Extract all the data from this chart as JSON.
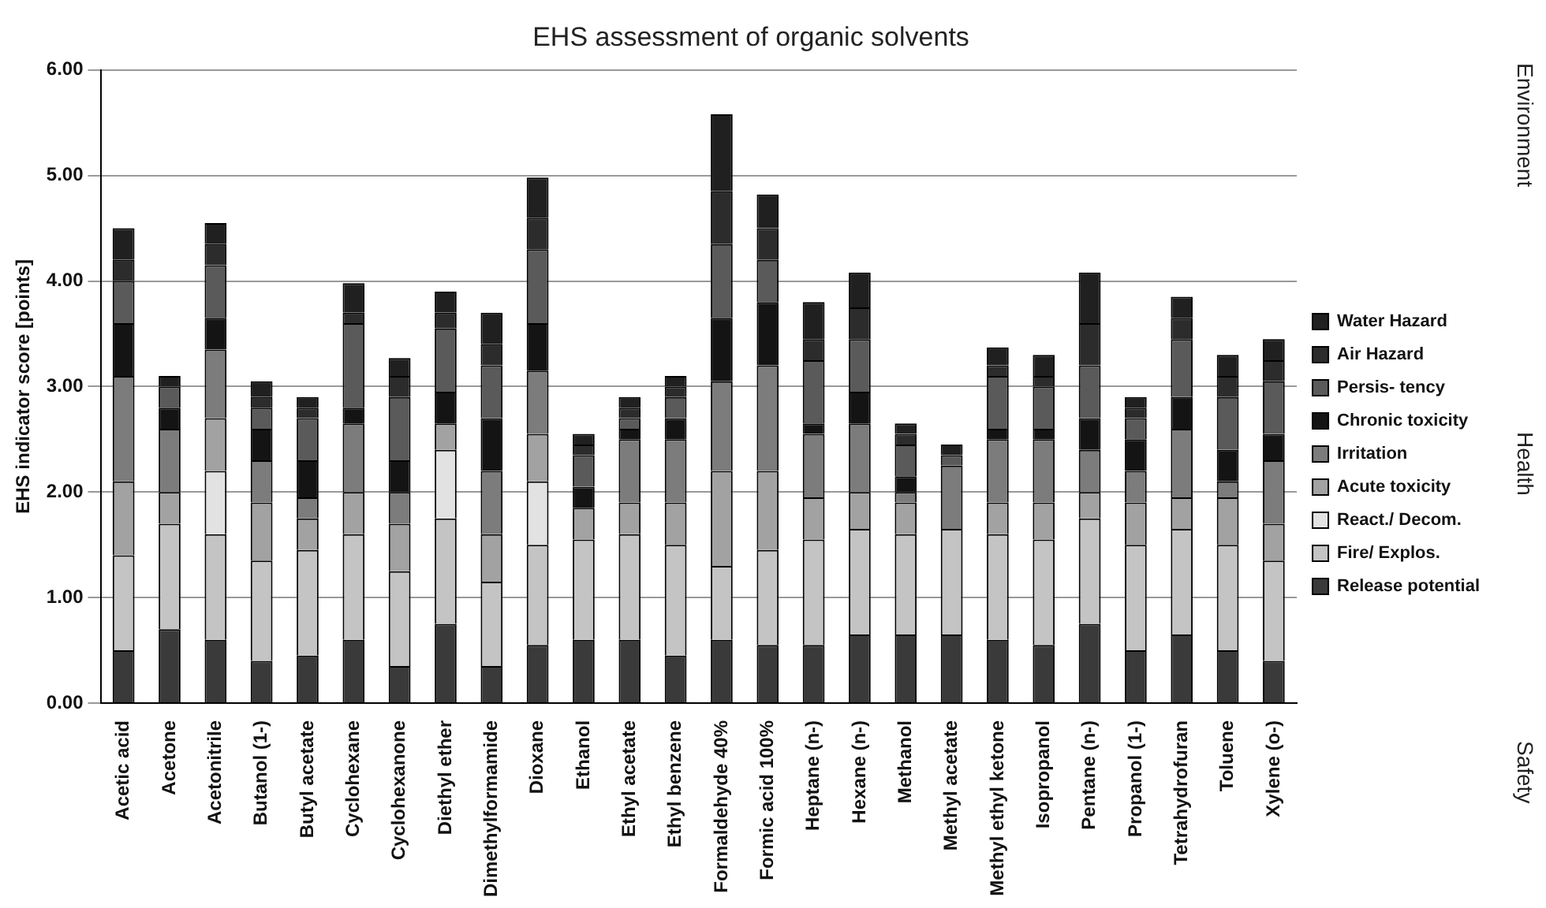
{
  "chart_data": {
    "type": "bar",
    "stacked": true,
    "title": "EHS assessment of organic solvents",
    "ylabel": "EHS indicator score [points]",
    "categories": [
      "Acetic acid",
      "Acetone",
      "Acetonitrile",
      "Butanol (1-)",
      "Butyl acetate",
      "Cyclohexane",
      "Cyclohexanone",
      "Diethyl ether",
      "Dimethylformamide",
      "Dioxane",
      "Ethanol",
      "Ethyl acetate",
      "Ethyl benzene",
      "Formaldehyde 40%",
      "Formic acid 100%",
      "Heptane (n-)",
      "Hexane (n-)",
      "Methanol",
      "Methyl acetate",
      "Methyl ethyl ketone",
      "Isopropanol",
      "Pentane (n-)",
      "Propanol (1-)",
      "Tetrahydrofuran",
      "Toluene",
      "Xylene (o-)"
    ],
    "series": [
      {
        "name": "Release potential",
        "color": "#3a3a3a",
        "values": [
          0.5,
          0.7,
          0.6,
          0.4,
          0.45,
          0.6,
          0.35,
          0.75,
          0.35,
          0.55,
          0.6,
          0.6,
          0.45,
          0.6,
          0.55,
          0.55,
          0.65,
          0.65,
          0.65,
          0.6,
          0.55,
          0.75,
          0.5,
          0.65,
          0.5,
          0.4
        ]
      },
      {
        "name": "Fire/ Explos.",
        "color": "#c4c4c4",
        "values": [
          0.9,
          1.0,
          1.0,
          0.95,
          1.0,
          1.0,
          0.9,
          1.0,
          0.8,
          0.95,
          0.95,
          1.0,
          1.05,
          0.7,
          0.9,
          1.0,
          1.0,
          0.95,
          1.0,
          1.0,
          1.0,
          1.0,
          1.0,
          1.0,
          1.0,
          0.95
        ]
      },
      {
        "name": "React./ Decom.",
        "color": "#e2e2e2",
        "values": [
          0,
          0,
          0.6,
          0,
          0,
          0,
          0,
          0.65,
          0,
          0.6,
          0,
          0,
          0,
          0,
          0,
          0,
          0,
          0,
          0,
          0,
          0,
          0,
          0,
          0,
          0,
          0
        ]
      },
      {
        "name": "Acute toxicity",
        "color": "#a2a2a2",
        "values": [
          0.7,
          0.3,
          0.5,
          0.55,
          0.3,
          0.4,
          0.45,
          0.25,
          0.45,
          0.45,
          0.3,
          0.3,
          0.4,
          0.9,
          0.75,
          0.4,
          0.35,
          0.3,
          0,
          0.3,
          0.35,
          0.25,
          0.4,
          0.3,
          0.45,
          0.35
        ]
      },
      {
        "name": "Irritation",
        "color": "#7c7c7c",
        "values": [
          1.0,
          0.6,
          0.65,
          0.4,
          0.2,
          0.65,
          0.3,
          0,
          0.6,
          0.6,
          0,
          0.6,
          0.6,
          0.85,
          1.0,
          0.6,
          0.65,
          0.1,
          0.6,
          0.6,
          0.6,
          0.4,
          0.3,
          0.65,
          0.15,
          0.6
        ]
      },
      {
        "name": "Chronic toxicity",
        "color": "#141414",
        "values": [
          0.5,
          0.2,
          0.3,
          0.3,
          0.35,
          0.15,
          0.3,
          0.3,
          0.5,
          0.45,
          0.2,
          0.1,
          0.2,
          0.6,
          0.6,
          0.1,
          0.3,
          0.15,
          0,
          0.1,
          0.1,
          0.3,
          0.3,
          0.3,
          0.3,
          0.25
        ]
      },
      {
        "name": "Persis- tency",
        "color": "#5a5a5a",
        "values": [
          0.4,
          0.2,
          0.5,
          0.2,
          0.4,
          0.8,
          0.6,
          0.6,
          0.5,
          0.7,
          0.3,
          0.1,
          0.2,
          0.7,
          0.4,
          0.6,
          0.5,
          0.3,
          0.1,
          0.5,
          0.4,
          0.5,
          0.2,
          0.55,
          0.5,
          0.5
        ]
      },
      {
        "name": "Air Hazard",
        "color": "#2c2c2c",
        "values": [
          0.2,
          0,
          0.2,
          0.1,
          0.1,
          0.1,
          0.2,
          0.15,
          0.2,
          0.3,
          0.1,
          0.1,
          0.1,
          0.5,
          0.3,
          0.2,
          0.3,
          0.1,
          0,
          0.1,
          0.1,
          0.4,
          0.1,
          0.2,
          0.2,
          0.2
        ]
      },
      {
        "name": "Water Hazard",
        "color": "#202020",
        "values": [
          0.3,
          0.1,
          0.2,
          0.15,
          0.1,
          0.28,
          0.17,
          0.2,
          0.3,
          0.38,
          0.1,
          0.1,
          0.1,
          0.73,
          0.32,
          0.35,
          0.33,
          0.1,
          0.1,
          0.17,
          0.2,
          0.48,
          0.1,
          0.2,
          0.2,
          0.2
        ]
      }
    ],
    "ylim": [
      0,
      6
    ],
    "yticks": [
      {
        "value": 0,
        "label": "0.00"
      },
      {
        "value": 1,
        "label": "1.00"
      },
      {
        "value": 2,
        "label": "2.00"
      },
      {
        "value": 3,
        "label": "3.00"
      },
      {
        "value": 4,
        "label": "4.00"
      },
      {
        "value": 5,
        "label": "5.00"
      },
      {
        "value": 6,
        "label": "6.00"
      }
    ],
    "grid": "y",
    "legend": "right",
    "annotations": [
      "Environment",
      "Health",
      "Safety"
    ]
  }
}
